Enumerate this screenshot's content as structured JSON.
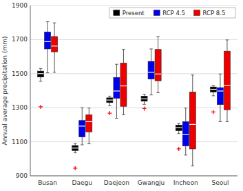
{
  "chart_data": {
    "type": "box",
    "y_label": "Annual average precipitation (mm)",
    "categories": [
      "Busan",
      "Daegu",
      "Daejeon",
      "Gwangju",
      "Incheon",
      "Seoul"
    ],
    "ylim": [
      900,
      1900
    ],
    "yticks": [
      900,
      1100,
      1300,
      1500,
      1700,
      1900
    ],
    "grid": true,
    "legend": "upper right",
    "series": [
      {
        "name": "Present",
        "color": "#000000",
        "med": [
          1500,
          1063,
          1345,
          1352,
          1183,
          1408
        ],
        "q1": [
          1480,
          1048,
          1330,
          1338,
          1165,
          1392
        ],
        "q3": [
          1515,
          1078,
          1358,
          1368,
          1198,
          1422
        ],
        "whislo": [
          1455,
          1035,
          1312,
          1320,
          1148,
          1370
        ],
        "whishi": [
          1530,
          1090,
          1368,
          1378,
          1208,
          1432
        ],
        "fliers": {
          "color": "red",
          "marker": "plus",
          "values": [
            [
              1305
            ],
            [
              945
            ],
            [
              1268
            ],
            [
              1295
            ],
            [
              1058
            ],
            [
              1275
            ]
          ]
        }
      },
      {
        "name": "RCP 4.5",
        "color": "#0000ee",
        "med": [
          1688,
          1192,
          1398,
          1508,
          1142,
          1398
        ],
        "q1": [
          1645,
          1128,
          1355,
          1468,
          1075,
          1318
        ],
        "q3": [
          1745,
          1225,
          1478,
          1572,
          1218,
          1418
        ],
        "whislo": [
          1505,
          1082,
          1238,
          1375,
          1022,
          1218
        ],
        "whishi": [
          1805,
          1300,
          1555,
          1645,
          1298,
          1498
        ]
      },
      {
        "name": "RCP 8.5",
        "color": "#ee0000",
        "med": [
          1662,
          1218,
          1428,
          1498,
          1202,
          1432
        ],
        "q1": [
          1628,
          1158,
          1308,
          1458,
          1058,
          1288
        ],
        "q3": [
          1718,
          1258,
          1562,
          1642,
          1392,
          1632
        ],
        "whislo": [
          1508,
          1088,
          1258,
          1388,
          958,
          1218
        ],
        "whishi": [
          1798,
          1298,
          1642,
          1718,
          1492,
          1698
        ]
      }
    ]
  }
}
